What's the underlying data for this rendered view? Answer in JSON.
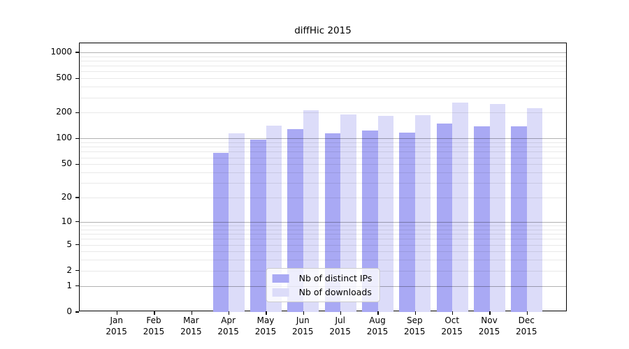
{
  "chart_data": {
    "type": "bar",
    "title": "diffHic 2015",
    "categories": [
      "Jan 2015",
      "Feb 2015",
      "Mar 2015",
      "Apr 2015",
      "May 2015",
      "Jun 2015",
      "Jul 2015",
      "Aug 2015",
      "Sep 2015",
      "Oct 2015",
      "Nov 2015",
      "Dec 2015"
    ],
    "series": [
      {
        "name": "Nb of distinct IPs",
        "color": "#a9a9f4",
        "values": [
          0,
          0,
          0,
          68,
          97,
          128,
          115,
          124,
          117,
          150,
          138,
          138
        ]
      },
      {
        "name": "Nb of downloads",
        "color": "#dcdcf9",
        "values": [
          0,
          0,
          0,
          115,
          141,
          214,
          192,
          185,
          186,
          260,
          253,
          224
        ]
      }
    ],
    "xlabel": "",
    "ylabel": "",
    "y_scale": "log1p",
    "y_ticks": [
      0,
      1,
      2,
      5,
      10,
      20,
      50,
      100,
      200,
      500,
      1000
    ],
    "ylim": [
      0,
      1270
    ],
    "grid": "major and minor horizontal gridlines",
    "legend_position": "lower center inside plot"
  }
}
